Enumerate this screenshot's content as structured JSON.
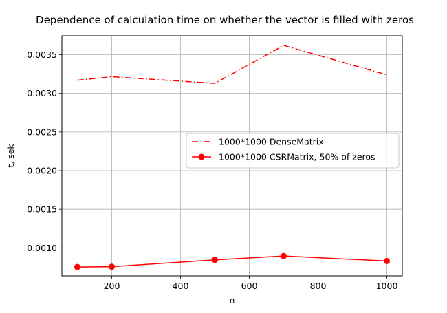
{
  "chart_data": {
    "type": "line",
    "title": "Dependence of calculation time on whether the vector is filled with zeros",
    "xlabel": "n",
    "ylabel": "t, sek",
    "xlim": [
      55,
      1045
    ],
    "ylim": [
      0.000638,
      0.003745
    ],
    "xticks": [
      200,
      400,
      600,
      800,
      1000
    ],
    "xtick_labels": [
      "200",
      "400",
      "600",
      "800",
      "1000"
    ],
    "yticks": [
      0.001,
      0.0015,
      0.002,
      0.0025,
      0.003,
      0.0035
    ],
    "ytick_labels": [
      "0.0010",
      "0.0015",
      "0.0020",
      "0.0025",
      "0.0030",
      "0.0035"
    ],
    "grid": true,
    "legend_position": "center-right",
    "series": [
      {
        "name": "1000*1000 DenseMatrix",
        "color": "#ff0000",
        "linestyle": "dashdot",
        "marker": "none",
        "x": [
          100,
          200,
          500,
          700,
          1000
        ],
        "y": [
          0.00317,
          0.003215,
          0.00313,
          0.00362,
          0.00324
        ]
      },
      {
        "name": "1000*1000 CSRMatrix, 50% of zeros",
        "color": "#ff0000",
        "linestyle": "solid",
        "marker": "circle",
        "x": [
          100,
          200,
          500,
          700,
          1000
        ],
        "y": [
          0.000753,
          0.000757,
          0.000845,
          0.000895,
          0.00083
        ]
      }
    ]
  }
}
